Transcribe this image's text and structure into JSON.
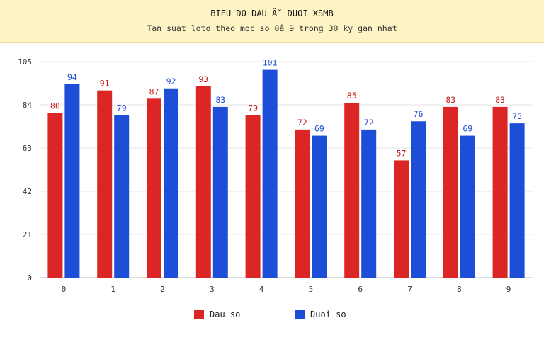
{
  "header": {
    "title": "BIEU DO DAU Â˘ DUOI XSMB",
    "subtitle": "Tan suat loto theo moc so 0â  9 trong 30 ky gan nhat"
  },
  "colors": {
    "dau": "#dc2626",
    "duoi": "#1d4ed8",
    "dau_label": "#c81e1e",
    "duoi_label": "#1d4ed8"
  },
  "legend": [
    {
      "name": "Dau so",
      "color": "#dc2626"
    },
    {
      "name": "Duoi so",
      "color": "#1d4ed8"
    }
  ],
  "chart_data": {
    "type": "bar",
    "title": "BIEU DO DAU Â˘ DUOI XSMB",
    "subtitle": "Tan suat loto theo moc so 0â  9 trong 30 ky gan nhat",
    "categories": [
      "0",
      "1",
      "2",
      "3",
      "4",
      "5",
      "6",
      "7",
      "8",
      "9"
    ],
    "series": [
      {
        "name": "Dau so",
        "values": [
          80,
          91,
          87,
          93,
          79,
          72,
          85,
          57,
          83,
          83
        ]
      },
      {
        "name": "Duoi so",
        "values": [
          94,
          79,
          92,
          83,
          101,
          69,
          72,
          76,
          69,
          75
        ]
      }
    ],
    "ylim": [
      0,
      105
    ],
    "yticks": [
      0,
      21,
      42,
      63,
      84,
      105
    ],
    "grid": true,
    "legend_position": "bottom"
  }
}
